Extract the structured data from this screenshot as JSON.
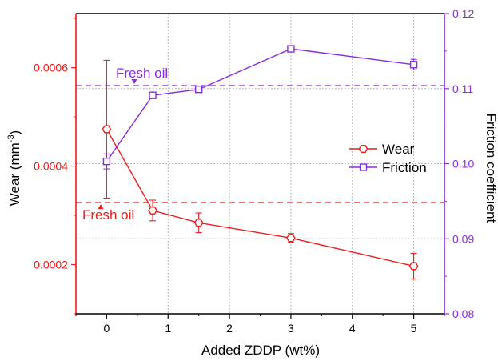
{
  "colors": {
    "wear": "#ee1c1c",
    "friction": "#8a2be2",
    "axis": "#000000",
    "grid": "#b4b4b4"
  },
  "chart_data": {
    "type": "line",
    "xlabel": "Added ZDDP (wt%)",
    "ylabel_left": "Wear (mm",
    "ylabel_left_sup": "-3",
    "ylabel_left_close": ")",
    "ylabel_right": "Friction coefficient",
    "xlim": [
      -0.5,
      5.5
    ],
    "ylim_left": [
      0.0001,
      0.00071
    ],
    "ylim_right": [
      0.08,
      0.12
    ],
    "x_ticks": [
      0,
      1,
      2,
      3,
      4,
      5
    ],
    "x_tick_labels": [
      "0",
      "1",
      "2",
      "3",
      "4",
      "5"
    ],
    "y_left_ticks": [
      0.0002,
      0.0004,
      0.0006
    ],
    "y_left_tick_labels": [
      "0.0002",
      "0.0004",
      "0.0006"
    ],
    "y_right_ticks": [
      0.08,
      0.09,
      0.1,
      0.11,
      0.12
    ],
    "y_right_tick_labels": [
      "0.08",
      "0.09",
      "0.10",
      "0.11",
      "0.12"
    ],
    "grid": true,
    "legend_position": "right",
    "series": [
      {
        "name": "Wear",
        "axis": "left",
        "marker": "hexagon",
        "x": [
          0,
          0.75,
          1.5,
          3,
          5
        ],
        "y": [
          0.000475,
          0.00031,
          0.000285,
          0.000254,
          0.000197
        ],
        "err": [
          0.00014,
          2.1e-05,
          2e-05,
          9e-06,
          2.6e-05
        ]
      },
      {
        "name": "Friction",
        "axis": "right",
        "marker": "square",
        "x": [
          0,
          0.75,
          1.5,
          3,
          5
        ],
        "y": [
          0.1003,
          0.1091,
          0.1099,
          0.1153,
          0.1132
        ],
        "err": [
          0.001,
          0.0003,
          0.0003,
          0.0003,
          0.0007
        ]
      }
    ],
    "reference_lines": [
      {
        "axis": "left",
        "value": 0.000326,
        "label": "Fresh oil",
        "series": "Wear"
      },
      {
        "axis": "right",
        "value": 0.1104,
        "label": "Fresh oil",
        "series": "Friction"
      }
    ]
  }
}
